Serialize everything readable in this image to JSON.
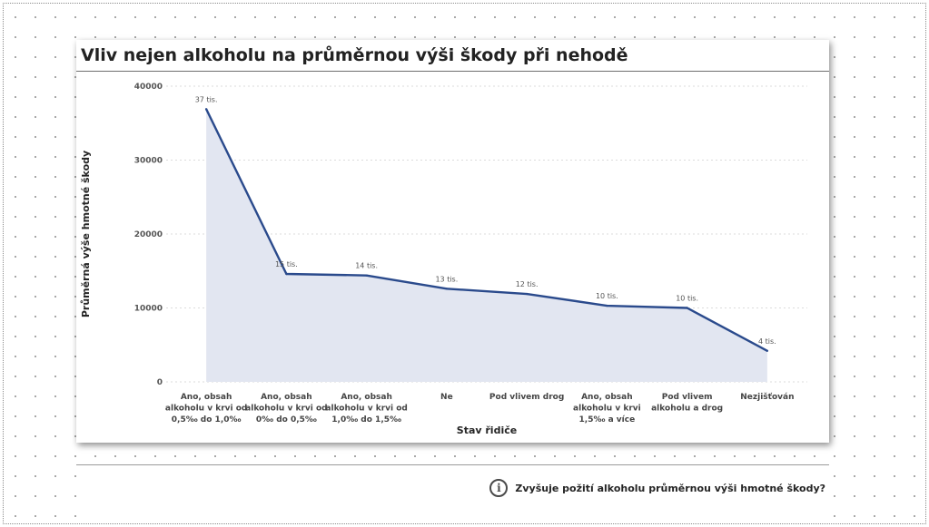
{
  "title": "Vliv nejen alkoholu na průměrnou výši škody při nehodě",
  "info": {
    "icon": "info-icon",
    "icon_glyph": "i",
    "text": "Zvyšuje požití alkoholu průměrnou výši hmotné škody?"
  },
  "colors": {
    "line": "#2a4a8c",
    "area": "#e2e6f1",
    "grid": "#d0d0d0"
  },
  "chart_data": {
    "type": "area",
    "xlabel": "Stav řidiče",
    "ylabel": "Průměrná výše hmotné škody",
    "ylim": [
      0,
      40000
    ],
    "yticks": [
      0,
      10000,
      20000,
      30000,
      40000
    ],
    "ytick_labels": [
      "0",
      "10000",
      "20000",
      "30000",
      "40000"
    ],
    "grid": true,
    "categories": [
      [
        "Ano, obsah",
        "alkoholu v krvi od",
        "0,5‰ do 1,0‰"
      ],
      [
        "Ano, obsah",
        "alkoholu v krvi od",
        "0‰ do 0,5‰"
      ],
      [
        "Ano, obsah",
        "alkoholu v krvi od",
        "1,0‰ do 1,5‰"
      ],
      [
        "Ne"
      ],
      [
        "Pod vlivem drog"
      ],
      [
        "Ano, obsah",
        "alkoholu v krvi",
        "1,5‰ a více"
      ],
      [
        "Pod vlivem",
        "alkoholu a drog"
      ],
      [
        "Nezjišťován"
      ]
    ],
    "values": [
      36900,
      14600,
      14400,
      12600,
      11900,
      10300,
      10000,
      4200
    ],
    "data_labels": [
      "37 tis.",
      "15 tis.",
      "14 tis.",
      "13 tis.",
      "12 tis.",
      "10 tis.",
      "10 tis.",
      "4 tis."
    ]
  }
}
